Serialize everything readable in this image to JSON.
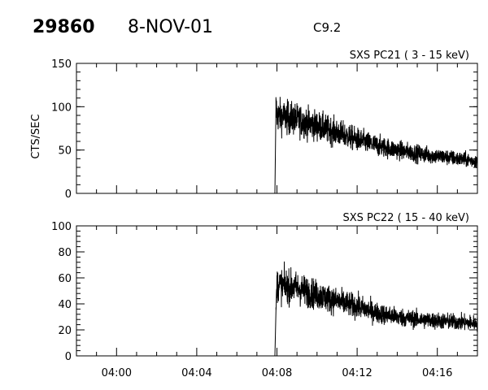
{
  "header": {
    "orbit": "29860",
    "date": "8-NOV-01",
    "flare_class": "C9.2"
  },
  "chart_data": [
    {
      "type": "line",
      "title": "SXS PC21  (  3 - 15 keV)",
      "ylabel": "CTS/SEC",
      "xlabel": "",
      "xlim": [
        "03:58",
        "04:18"
      ],
      "ylim": [
        0,
        150
      ],
      "y_ticks": [
        "0",
        "50",
        "100",
        "150"
      ],
      "x_ticks": [],
      "grid": false,
      "series": [
        {
          "x": [
            "04:07.9",
            "04:07.95",
            "04:08",
            "04:09",
            "04:10",
            "04:11",
            "04:12",
            "04:13",
            "04:14",
            "04:15",
            "04:16",
            "04:17",
            "04:18"
          ],
          "y": [
            0,
            100,
            90,
            85,
            78,
            70,
            62,
            55,
            50,
            46,
            43,
            40,
            37
          ]
        }
      ]
    },
    {
      "type": "line",
      "title": "SXS PC22  ( 15 - 40 keV)",
      "ylabel": "",
      "xlabel": "",
      "xlim": [
        "03:58",
        "04:18"
      ],
      "ylim": [
        0,
        100
      ],
      "y_ticks": [
        "0",
        "20",
        "40",
        "60",
        "80",
        "100"
      ],
      "x_ticks": [
        "04:00",
        "04:04",
        "04:08",
        "04:12",
        "04:16"
      ],
      "grid": false,
      "series": [
        {
          "x": [
            "04:07.9",
            "04:07.95",
            "04:08",
            "04:09",
            "04:10",
            "04:11",
            "04:12",
            "04:13",
            "04:14",
            "04:15",
            "04:16",
            "04:17",
            "04:18"
          ],
          "y": [
            0,
            35,
            55,
            52,
            47,
            42,
            38,
            33,
            30,
            28,
            27,
            26,
            25
          ]
        }
      ]
    }
  ]
}
